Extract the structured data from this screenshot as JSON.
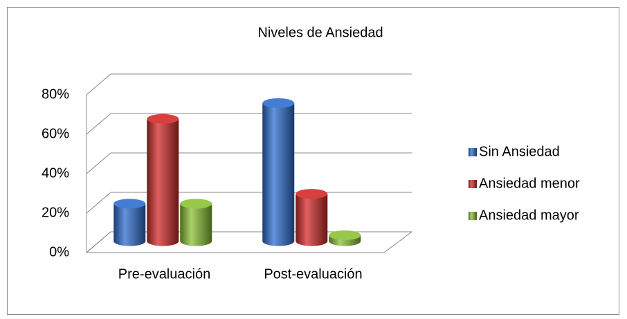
{
  "chart_data": {
    "type": "bar3d",
    "title": "Niveles de Ansiedad",
    "categories": [
      "Pre-evaluación",
      "Post-evaluación"
    ],
    "series": [
      {
        "name": "Sin Ansiedad",
        "color": "#2f6fd0",
        "values": [
          19,
          70
        ]
      },
      {
        "name": "Ansiedad menor",
        "color": "#d42b2b",
        "values": [
          62,
          24
        ]
      },
      {
        "name": "Ansiedad mayor",
        "color": "#8cc236",
        "values": [
          19,
          3
        ]
      }
    ],
    "ylim": [
      0,
      80
    ],
    "yticks": [
      {
        "value": 0,
        "label": "0%"
      },
      {
        "value": 20,
        "label": "20%"
      },
      {
        "value": 40,
        "label": "40%"
      },
      {
        "value": 60,
        "label": "60%"
      },
      {
        "value": 80,
        "label": "80%"
      }
    ],
    "grid": true,
    "legend": "right"
  }
}
